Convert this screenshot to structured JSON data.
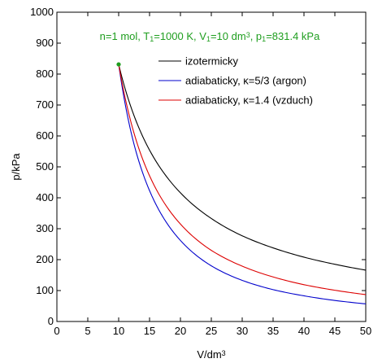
{
  "chart_data": {
    "type": "line",
    "annotation": {
      "parts": [
        {
          "text": "n=1 mol, T"
        },
        {
          "text": "1",
          "sub": true
        },
        {
          "text": "=1000 K, V"
        },
        {
          "text": "1",
          "sub": true
        },
        {
          "text": "=10 dm"
        },
        {
          "text": "3",
          "sup": true
        },
        {
          "text": ", p"
        },
        {
          "text": "1",
          "sub": true
        },
        {
          "text": "=831.4 kPa"
        }
      ],
      "color": "#1f9e1f"
    },
    "xlabel": {
      "base": "V/dm",
      "sup": "3"
    },
    "ylabel": "p/kPa",
    "xlim": [
      0,
      50
    ],
    "ylim": [
      0,
      1000
    ],
    "xticks": [
      0,
      5,
      10,
      15,
      20,
      25,
      30,
      35,
      40,
      45,
      50
    ],
    "yticks": [
      0,
      100,
      200,
      300,
      400,
      500,
      600,
      700,
      800,
      900,
      1000
    ],
    "grid": false,
    "legend_position": "top-right",
    "initial_point": {
      "x": 10,
      "y": 831.4,
      "color": "#1f9e1f"
    },
    "series": [
      {
        "name": "izotermicky",
        "color": "#000000",
        "x": [
          10,
          12.5,
          15,
          20,
          25,
          30,
          35,
          40,
          45,
          50
        ],
        "y": [
          831.4,
          665,
          554,
          416,
          333,
          277,
          238,
          208,
          185,
          166
        ]
      },
      {
        "name": "adiabaticky, κ=5/3 (argon)",
        "color": "#0000cc",
        "x": [
          10,
          12.5,
          15,
          20,
          25,
          30,
          35,
          40,
          45,
          50
        ],
        "y": [
          831.4,
          572,
          423,
          262,
          180,
          133,
          103,
          83,
          68,
          57
        ]
      },
      {
        "name": "adiabaticky, κ=1.4 (vzduch)",
        "color": "#dd0000",
        "x": [
          10,
          12.5,
          15,
          20,
          25,
          30,
          35,
          40,
          45,
          50
        ],
        "y": [
          831.4,
          608,
          471,
          315,
          230,
          179,
          144,
          119,
          101,
          87
        ]
      }
    ]
  }
}
